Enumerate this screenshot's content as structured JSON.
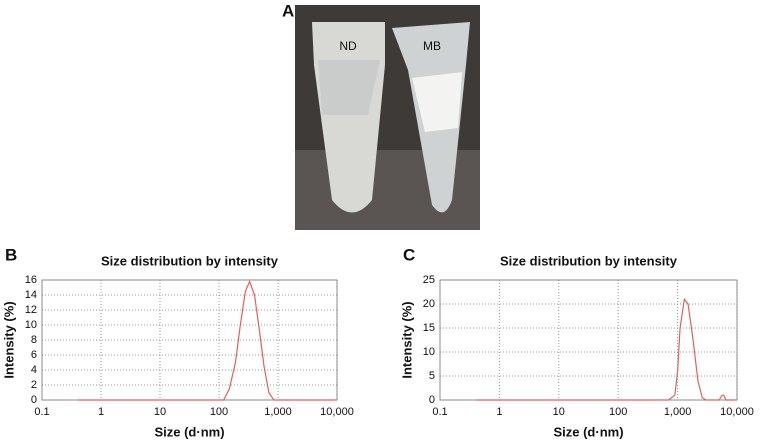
{
  "panel_a": {
    "label": "A",
    "tube_labels": [
      "ND",
      "MB"
    ]
  },
  "chart_data": [
    {
      "type": "line",
      "panel_label": "B",
      "title": "Size distribution by intensity",
      "x_label": "Size (d·nm)",
      "y_label": "Intensity (%)",
      "log_x": true,
      "grid": true,
      "color": "#e06060",
      "x": [
        0.4,
        120,
        150,
        190,
        230,
        280,
        330,
        400,
        480,
        580,
        700,
        850,
        10000
      ],
      "values": [
        0,
        0,
        1.5,
        5,
        10,
        14.5,
        15.8,
        14,
        9.5,
        4.5,
        1,
        0,
        0
      ],
      "xlim": [
        0.1,
        10000
      ],
      "xticks": [
        0.1,
        1,
        10,
        100,
        {
          "value": 1000,
          "label": "1,000"
        },
        {
          "value": 10000,
          "label": "10,000"
        }
      ],
      "ylim": [
        0,
        16
      ],
      "yticks": [
        0,
        2,
        4,
        6,
        8,
        10,
        12,
        14,
        16
      ]
    },
    {
      "type": "line",
      "panel_label": "C",
      "title": "Size distribution by intensity",
      "x_label": "Size (d·nm)",
      "y_label": "Intensity (%)",
      "log_x": true,
      "grid": true,
      "color": "#e06060",
      "x": [
        0.4,
        700,
        900,
        1000,
        1100,
        1300,
        1500,
        1800,
        2200,
        2600,
        3000,
        5000,
        5600,
        6000,
        6500,
        10000
      ],
      "values": [
        0,
        0,
        1,
        6,
        15,
        21,
        20,
        13,
        4,
        0.5,
        0,
        0,
        1,
        1,
        0,
        0
      ],
      "xlim": [
        0.1,
        10000
      ],
      "xticks": [
        0.1,
        1,
        10,
        100,
        {
          "value": 1000,
          "label": "1,000"
        },
        {
          "value": 10000,
          "label": "10,000"
        }
      ],
      "ylim": [
        0,
        25
      ],
      "yticks": [
        0,
        5,
        10,
        15,
        20,
        25
      ]
    }
  ]
}
